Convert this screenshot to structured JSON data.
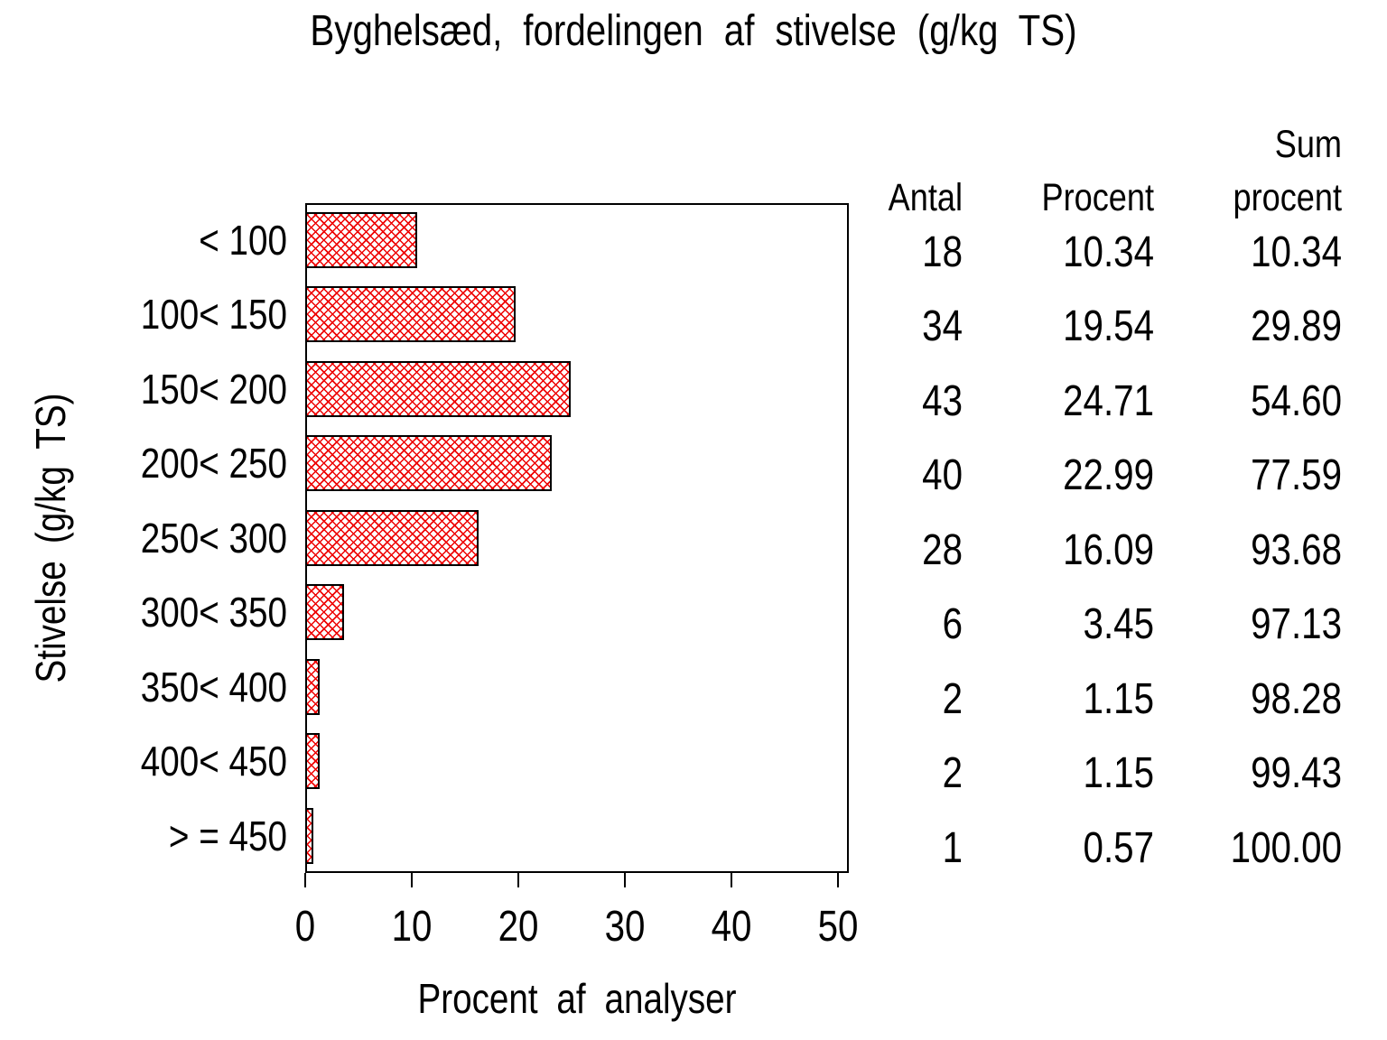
{
  "chart_data": {
    "type": "bar",
    "orientation": "horizontal",
    "title": "Byghelsæd, fordelingen af stivelse (g/kg TS)",
    "xlabel": "Procent af analyser",
    "ylabel": "Stivelse (g/kg TS)",
    "xlim": [
      0,
      50
    ],
    "xticks": [
      0,
      10,
      20,
      30,
      40,
      50
    ],
    "grid": false,
    "legend": "none",
    "bar_pattern": "red-diagonal-crosshatch",
    "bar_pattern_color": "#ee0000",
    "bar_border_color": "#000000",
    "categories": [
      "< 100",
      "100< 150",
      "150< 200",
      "200< 250",
      "250< 300",
      "300< 350",
      "350< 400",
      "400< 450",
      "> = 450"
    ],
    "values": [
      10.34,
      19.54,
      24.71,
      22.99,
      16.09,
      3.45,
      1.15,
      1.15,
      0.57
    ],
    "table": {
      "header": {
        "antal": "Antal",
        "procent": "Procent",
        "sum_line1": "Sum",
        "sum_line2": "procent"
      },
      "rows": [
        {
          "antal": "18",
          "procent": "10.34",
          "sum": "10.34"
        },
        {
          "antal": "34",
          "procent": "19.54",
          "sum": "29.89"
        },
        {
          "antal": "43",
          "procent": "24.71",
          "sum": "54.60"
        },
        {
          "antal": "40",
          "procent": "22.99",
          "sum": "77.59"
        },
        {
          "antal": "28",
          "procent": "16.09",
          "sum": "93.68"
        },
        {
          "antal": "6",
          "procent": "3.45",
          "sum": "97.13"
        },
        {
          "antal": "2",
          "procent": "1.15",
          "sum": "98.28"
        },
        {
          "antal": "2",
          "procent": "1.15",
          "sum": "99.43"
        },
        {
          "antal": "1",
          "procent": "0.57",
          "sum": "100.00"
        }
      ]
    }
  }
}
